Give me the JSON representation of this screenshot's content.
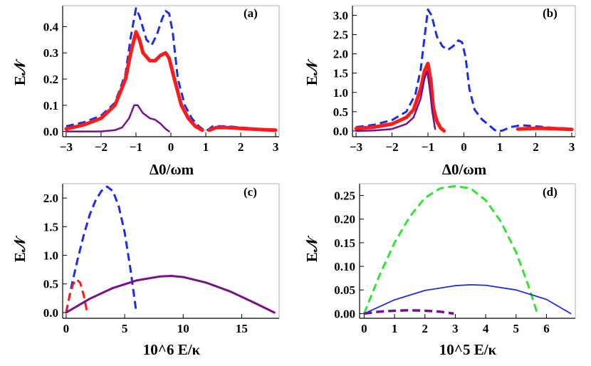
{
  "chart_data": [
    {
      "type": "line",
      "panel_label": "(a)",
      "xlabel": "Δ0/ωm",
      "ylabel": "E𝒩",
      "xlim": [
        -3.1,
        3.1
      ],
      "ylim": [
        -0.02,
        0.48
      ],
      "xticks": [
        -3,
        -2,
        -1,
        0,
        1,
        2,
        3
      ],
      "xtick_labels": [
        "−3",
        "−2",
        "−1",
        "0",
        "1",
        "2",
        "3"
      ],
      "yticks": [
        0.0,
        0.1,
        0.2,
        0.3,
        0.4
      ],
      "ytick_labels": [
        "0.0",
        "0.1",
        "0.2",
        "0.3",
        "0.4"
      ],
      "series": [
        {
          "color": "#1c2de6",
          "style": "dashed",
          "width": 3,
          "segments": [
            [
              [
                -3,
                0.02
              ],
              [
                -2.5,
                0.035
              ],
              [
                -2,
                0.06
              ],
              [
                -1.6,
                0.11
              ],
              [
                -1.3,
                0.22
              ],
              [
                -1.15,
                0.36
              ],
              [
                -1.0,
                0.47
              ],
              [
                -0.9,
                0.44
              ],
              [
                -0.7,
                0.35
              ],
              [
                -0.55,
                0.33
              ],
              [
                -0.4,
                0.37
              ],
              [
                -0.25,
                0.43
              ],
              [
                -0.15,
                0.46
              ],
              [
                -0.05,
                0.45
              ],
              [
                0.05,
                0.38
              ],
              [
                0.2,
                0.2
              ],
              [
                0.4,
                0.1
              ],
              [
                0.6,
                0.05
              ],
              [
                0.8,
                0.02
              ],
              [
                1.0,
                0.0
              ],
              [
                1.2,
                0.02
              ],
              [
                1.6,
                0.02
              ],
              [
                2,
                0.015
              ],
              [
                2.5,
                0.01
              ],
              [
                3,
                0.005
              ]
            ]
          ]
        },
        {
          "color": "#ff1a1a",
          "style": "solid",
          "width": 5,
          "segments": [
            [
              [
                -3,
                0.01
              ],
              [
                -2.5,
                0.025
              ],
              [
                -2,
                0.05
              ],
              [
                -1.6,
                0.1
              ],
              [
                -1.3,
                0.2
              ],
              [
                -1.15,
                0.3
              ],
              [
                -1.0,
                0.38
              ],
              [
                -0.9,
                0.35
              ],
              [
                -0.8,
                0.3
              ],
              [
                -0.6,
                0.27
              ],
              [
                -0.45,
                0.27
              ],
              [
                -0.3,
                0.29
              ],
              [
                -0.15,
                0.3
              ],
              [
                -0.05,
                0.28
              ],
              [
                0.1,
                0.2
              ],
              [
                0.3,
                0.1
              ],
              [
                0.5,
                0.05
              ],
              [
                0.7,
                0.02
              ],
              [
                0.9,
                0.005
              ]
            ],
            [
              [
                1.1,
                0.005
              ],
              [
                1.3,
                0.015
              ],
              [
                1.6,
                0.015
              ],
              [
                2,
                0.012
              ],
              [
                2.5,
                0.008
              ],
              [
                3,
                0.005
              ]
            ]
          ]
        },
        {
          "color": "#7a0f8c",
          "style": "solid",
          "width": 2.5,
          "segments": [
            [
              [
                -3,
                0.0
              ],
              [
                -2.5,
                0.0
              ],
              [
                -2,
                0.0
              ],
              [
                -1.6,
                0.005
              ],
              [
                -1.4,
                0.015
              ],
              [
                -1.2,
                0.05
              ],
              [
                -1.05,
                0.1
              ],
              [
                -0.95,
                0.1
              ],
              [
                -0.8,
                0.07
              ],
              [
                -0.6,
                0.05
              ],
              [
                -0.45,
                0.045
              ],
              [
                -0.3,
                0.03
              ],
              [
                -0.15,
                0.01
              ],
              [
                -0.05,
                0.0
              ]
            ]
          ]
        }
      ]
    },
    {
      "type": "line",
      "panel_label": "(b)",
      "xlabel": "Δ0/ωm",
      "ylabel": "E𝒩",
      "xlim": [
        -3.1,
        3.1
      ],
      "ylim": [
        -0.15,
        3.25
      ],
      "xticks": [
        -3,
        -2,
        -1,
        0,
        1,
        2,
        3
      ],
      "xtick_labels": [
        "−3",
        "−2",
        "−1",
        "0",
        "1",
        "2",
        "3"
      ],
      "yticks": [
        0.0,
        0.5,
        1.0,
        1.5,
        2.0,
        2.5,
        3.0
      ],
      "ytick_labels": [
        "0.0",
        "0.5",
        "1.0",
        "1.5",
        "2.0",
        "2.5",
        "3.0"
      ],
      "series": [
        {
          "color": "#1c2de6",
          "style": "dashed",
          "width": 3,
          "segments": [
            [
              [
                -3,
                0.1
              ],
              [
                -2.5,
                0.16
              ],
              [
                -2,
                0.28
              ],
              [
                -1.6,
                0.5
              ],
              [
                -1.35,
                0.95
              ],
              [
                -1.2,
                1.6
              ],
              [
                -1.1,
                2.4
              ],
              [
                -1.0,
                3.15
              ],
              [
                -0.9,
                3.0
              ],
              [
                -0.75,
                2.45
              ],
              [
                -0.6,
                2.2
              ],
              [
                -0.45,
                2.1
              ],
              [
                -0.3,
                2.2
              ],
              [
                -0.15,
                2.35
              ],
              [
                -0.05,
                2.3
              ],
              [
                0.05,
                1.9
              ],
              [
                0.15,
                1.1
              ],
              [
                0.3,
                0.55
              ],
              [
                0.5,
                0.3
              ],
              [
                0.7,
                0.15
              ],
              [
                0.85,
                0.03
              ],
              [
                0.95,
                -0.02
              ],
              [
                1.1,
                0.02
              ],
              [
                1.3,
                0.1
              ],
              [
                1.6,
                0.15
              ],
              [
                2,
                0.12
              ],
              [
                2.5,
                0.08
              ],
              [
                3,
                0.06
              ]
            ]
          ]
        },
        {
          "color": "#ff1a1a",
          "style": "solid",
          "width": 5,
          "segments": [
            [
              [
                -3,
                0.06
              ],
              [
                -2.5,
                0.1
              ],
              [
                -2,
                0.18
              ],
              [
                -1.6,
                0.35
              ],
              [
                -1.4,
                0.55
              ],
              [
                -1.2,
                1.1
              ],
              [
                -1.1,
                1.55
              ],
              [
                -1.0,
                1.75
              ],
              [
                -0.92,
                1.3
              ],
              [
                -0.85,
                0.6
              ],
              [
                -0.75,
                0.25
              ],
              [
                -0.65,
                0.08
              ],
              [
                -0.55,
                0.0
              ]
            ],
            [
              [
                1.5,
                0.05
              ],
              [
                2,
                0.07
              ],
              [
                2.5,
                0.06
              ],
              [
                3,
                0.04
              ]
            ]
          ]
        },
        {
          "color": "#7a0f8c",
          "style": "solid",
          "width": 2.5,
          "segments": [
            [
              [
                -3,
                0.0
              ],
              [
                -2.5,
                0.01
              ],
              [
                -2,
                0.05
              ],
              [
                -1.6,
                0.18
              ],
              [
                -1.4,
                0.35
              ],
              [
                -1.2,
                0.85
              ],
              [
                -1.1,
                1.35
              ],
              [
                -1.02,
                1.55
              ],
              [
                -0.95,
                1.1
              ],
              [
                -0.88,
                0.5
              ],
              [
                -0.8,
                0.05
              ]
            ]
          ]
        }
      ]
    },
    {
      "type": "line",
      "panel_label": "(c)",
      "xlabel": "10^6 E/κ",
      "ylabel": "E𝒩",
      "xlim": [
        -0.3,
        18.2
      ],
      "ylim": [
        -0.1,
        2.25
      ],
      "xticks": [
        0,
        5,
        10,
        15
      ],
      "xtick_labels": [
        "0",
        "5",
        "10",
        "15"
      ],
      "yticks": [
        0.0,
        0.5,
        1.0,
        1.5,
        2.0
      ],
      "ytick_labels": [
        "0.0",
        "0.5",
        "1.0",
        "1.5",
        "2.0"
      ],
      "series": [
        {
          "color": "#1c2de6",
          "style": "dashed",
          "width": 3,
          "segments": [
            [
              [
                0,
                0.0
              ],
              [
                0.5,
                0.5
              ],
              [
                1,
                0.95
              ],
              [
                1.5,
                1.35
              ],
              [
                2,
                1.7
              ],
              [
                2.5,
                1.95
              ],
              [
                3,
                2.12
              ],
              [
                3.5,
                2.2
              ],
              [
                4,
                2.12
              ],
              [
                4.5,
                1.85
              ],
              [
                5,
                1.4
              ],
              [
                5.5,
                0.75
              ],
              [
                6,
                0.0
              ]
            ]
          ]
        },
        {
          "color": "#ff1a1a",
          "style": "dashed",
          "width": 3,
          "segments": [
            [
              [
                0,
                0.0
              ],
              [
                0.3,
                0.3
              ],
              [
                0.6,
                0.5
              ],
              [
                0.9,
                0.58
              ],
              [
                1.2,
                0.52
              ],
              [
                1.5,
                0.3
              ],
              [
                1.8,
                0.0
              ]
            ]
          ]
        },
        {
          "color": "#7a0f8c",
          "style": "solid",
          "width": 3,
          "segments": [
            [
              [
                0,
                0.0
              ],
              [
                2,
                0.24
              ],
              [
                4,
                0.43
              ],
              [
                6,
                0.56
              ],
              [
                8,
                0.63
              ],
              [
                9,
                0.64
              ],
              [
                10,
                0.62
              ],
              [
                12,
                0.52
              ],
              [
                14,
                0.37
              ],
              [
                16,
                0.18
              ],
              [
                17.8,
                0.0
              ]
            ]
          ]
        }
      ]
    },
    {
      "type": "line",
      "panel_label": "(d)",
      "xlabel": "10^5 E/κ",
      "ylabel": "E𝒩",
      "xlim": [
        -0.15,
        6.95
      ],
      "ylim": [
        -0.01,
        0.275
      ],
      "xticks": [
        0,
        1,
        2,
        3,
        4,
        5,
        6
      ],
      "xtick_labels": [
        "0",
        "1",
        "2",
        "3",
        "4",
        "5",
        "6"
      ],
      "yticks": [
        0.0,
        0.05,
        0.1,
        0.15,
        0.2,
        0.25
      ],
      "ytick_labels": [
        "0.00",
        "0.05",
        "0.10",
        "0.15",
        "0.20",
        "0.25"
      ],
      "series": [
        {
          "color": "#2ee62e",
          "style": "dashed",
          "width": 3,
          "segments": [
            [
              [
                0,
                0.0
              ],
              [
                0.5,
                0.08
              ],
              [
                1,
                0.15
              ],
              [
                1.5,
                0.205
              ],
              [
                2,
                0.245
              ],
              [
                2.5,
                0.265
              ],
              [
                3,
                0.27
              ],
              [
                3.5,
                0.265
              ],
              [
                4,
                0.24
              ],
              [
                4.5,
                0.195
              ],
              [
                5,
                0.13
              ],
              [
                5.4,
                0.06
              ],
              [
                5.7,
                0.0
              ]
            ]
          ]
        },
        {
          "color": "#1c2de6",
          "style": "solid",
          "width": 1.8,
          "segments": [
            [
              [
                0,
                0.0
              ],
              [
                1,
                0.029
              ],
              [
                2,
                0.049
              ],
              [
                3,
                0.059
              ],
              [
                3.5,
                0.061
              ],
              [
                4,
                0.06
              ],
              [
                5,
                0.05
              ],
              [
                6,
                0.03
              ],
              [
                6.8,
                0.0
              ]
            ]
          ]
        },
        {
          "color": "#7a0f8c",
          "style": "dashed",
          "width": 3.5,
          "segments": [
            [
              [
                0,
                0.0
              ],
              [
                0.5,
                0.004
              ],
              [
                1,
                0.006
              ],
              [
                1.5,
                0.007
              ],
              [
                2,
                0.006
              ],
              [
                2.5,
                0.004
              ],
              [
                2.95,
                0.0
              ]
            ]
          ]
        }
      ]
    }
  ]
}
